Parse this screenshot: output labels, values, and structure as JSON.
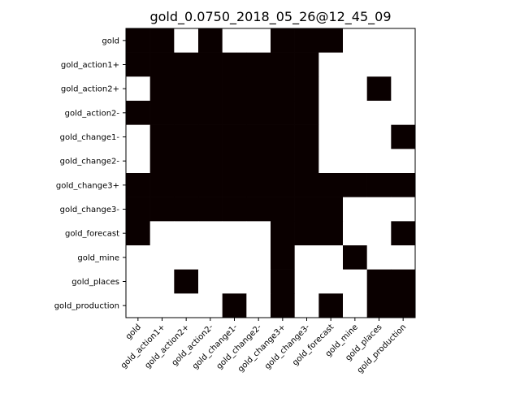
{
  "chart_data": {
    "type": "heatmap",
    "title": "gold_0.0750_2018_05_26@12_45_09",
    "xlabel": "",
    "ylabel": "",
    "x_labels": [
      "gold",
      "gold_action1+",
      "gold_action2+",
      "gold_action2-",
      "gold_change1-",
      "gold_change2-",
      "gold_change3+",
      "gold_change3-",
      "gold_forecast",
      "gold_mine",
      "gold_places",
      "gold_production"
    ],
    "y_labels": [
      "gold",
      "gold_action1+",
      "gold_action2+",
      "gold_action2-",
      "gold_change1-",
      "gold_change2-",
      "gold_change3+",
      "gold_change3-",
      "gold_forecast",
      "gold_mine",
      "gold_places",
      "gold_production"
    ],
    "matrix": [
      [
        1,
        1,
        0,
        1,
        0,
        0,
        1,
        1,
        1,
        0,
        0,
        0
      ],
      [
        1,
        1,
        1,
        1,
        1,
        1,
        1,
        1,
        0,
        0,
        0,
        0
      ],
      [
        0,
        1,
        1,
        1,
        1,
        1,
        1,
        1,
        0,
        0,
        1,
        0
      ],
      [
        1,
        1,
        1,
        1,
        1,
        1,
        1,
        1,
        0,
        0,
        0,
        0
      ],
      [
        0,
        1,
        1,
        1,
        1,
        1,
        1,
        1,
        0,
        0,
        0,
        1
      ],
      [
        0,
        1,
        1,
        1,
        1,
        1,
        1,
        1,
        0,
        0,
        0,
        0
      ],
      [
        1,
        1,
        1,
        1,
        1,
        1,
        1,
        1,
        1,
        1,
        1,
        1
      ],
      [
        1,
        1,
        1,
        1,
        1,
        1,
        1,
        1,
        1,
        0,
        0,
        0
      ],
      [
        1,
        0,
        0,
        0,
        0,
        0,
        1,
        1,
        1,
        0,
        0,
        1
      ],
      [
        0,
        0,
        0,
        0,
        0,
        0,
        1,
        0,
        0,
        1,
        0,
        0
      ],
      [
        0,
        0,
        1,
        0,
        0,
        0,
        1,
        0,
        0,
        0,
        1,
        1
      ],
      [
        0,
        0,
        0,
        0,
        1,
        0,
        1,
        0,
        1,
        0,
        1,
        1
      ]
    ],
    "colors": {
      "on": "#0a0000",
      "off": "#ffffff",
      "frame": "#000000"
    },
    "grid": false
  }
}
